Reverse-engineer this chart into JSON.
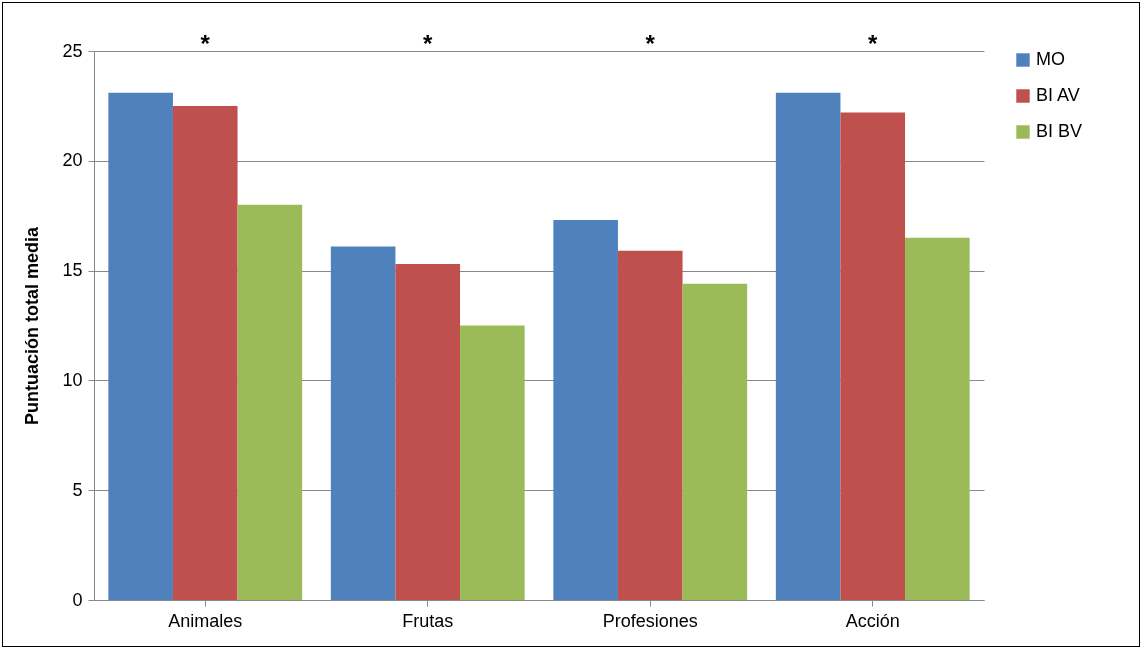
{
  "chart_data": {
    "type": "bar",
    "ylabel": "Puntuación total media",
    "categories": [
      "Animales",
      "Frutas",
      "Profesiones",
      "Acción"
    ],
    "series": [
      {
        "name": "MO",
        "color": "#4f81bd",
        "values": [
          23.1,
          16.1,
          17.3,
          23.1
        ]
      },
      {
        "name": "BI AV",
        "color": "#c0504d",
        "values": [
          22.5,
          15.3,
          15.9,
          22.2
        ]
      },
      {
        "name": "BI BV",
        "color": "#9bbb59",
        "values": [
          18.0,
          12.5,
          14.4,
          16.5
        ]
      }
    ],
    "ylim": [
      0,
      25
    ],
    "yticks": [
      0,
      5,
      10,
      15,
      20,
      25
    ],
    "grid": "y",
    "legend": "right",
    "annotations": [
      "*",
      "*",
      "*",
      "*"
    ]
  }
}
